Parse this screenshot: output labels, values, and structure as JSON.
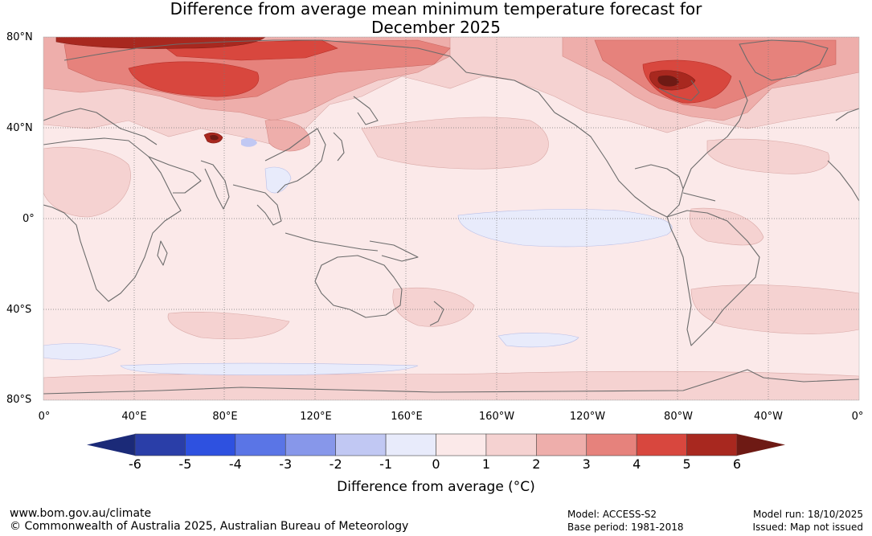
{
  "title": {
    "line1": "Difference from average mean minimum temperature forecast for",
    "line2": "December 2025"
  },
  "map": {
    "lat_labels": [
      "80°N",
      "40°N",
      "0°",
      "40°S",
      "80°S"
    ],
    "lon_labels": [
      "0°",
      "40°E",
      "80°E",
      "120°E",
      "160°E",
      "160°W",
      "120°W",
      "80°W",
      "40°W",
      "0°"
    ]
  },
  "colorbar": {
    "label": "Difference from average (°C)",
    "ticks": [
      "-6",
      "-5",
      "-4",
      "-3",
      "-2",
      "-1",
      "0",
      "1",
      "2",
      "3",
      "4",
      "5",
      "6"
    ],
    "colors": {
      "extend_low": "#1b2a78",
      "bins": [
        "#2a3ea8",
        "#2e51e0",
        "#5a75e6",
        "#8797ea",
        "#c1c8f3",
        "#e8ebfb",
        "#fbe9e9",
        "#f5d2d1",
        "#eeaeab",
        "#e6827c",
        "#d8473e",
        "#a8281f"
      ],
      "extend_high": "#6e1a14"
    }
  },
  "footer": {
    "website": "www.bom.gov.au/climate",
    "copyright": "© Commonwealth of Australia 2025, Australian Bureau of Meteorology",
    "model": "Model: ACCESS-S2",
    "base_period": "Base period: 1981-2018",
    "model_run": "Model run: 18/10/2025",
    "issued": "Issued: Map not issued"
  }
}
